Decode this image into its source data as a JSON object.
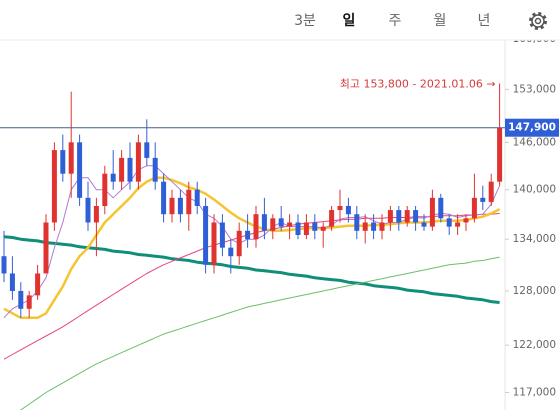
{
  "tabs": [
    "3분",
    "일",
    "주",
    "월",
    "년"
  ],
  "active_tab": 1,
  "chart_data": {
    "type": "candlestick",
    "log_scale": true,
    "ylim": [
      115200,
      165600
    ],
    "yticks": [
      {
        "value": 160000,
        "label": "160,000"
      },
      {
        "value": 153000,
        "label": "153,000"
      },
      {
        "value": 146000,
        "label": "146,000"
      },
      {
        "value": 140000,
        "label": "140,000"
      },
      {
        "value": 134000,
        "label": "134,000"
      },
      {
        "value": 128000,
        "label": "128,000"
      },
      {
        "value": 122000,
        "label": "122,000"
      },
      {
        "value": 117000,
        "label": "117,000"
      }
    ],
    "up_color": "#e0322f",
    "down_color": "#2f5fd6",
    "candles": {
      "open": [
        132000,
        130000,
        128000,
        126000,
        127500,
        130000,
        136000,
        145000,
        142000,
        146000,
        139000,
        136000,
        138000,
        142000,
        141000,
        144000,
        141000,
        146000,
        144000,
        141000,
        137000,
        139000,
        137000,
        140000,
        138000,
        131000,
        136000,
        133000,
        132000,
        135000,
        134000,
        137000,
        135000,
        136500,
        135500,
        136000,
        134500,
        136000,
        135000,
        135500,
        137500,
        138000,
        137000,
        135000,
        136000,
        135000,
        136000,
        137500,
        136000,
        137500,
        136000,
        135500,
        139000,
        136500,
        135500,
        136000,
        136500,
        139000,
        138500,
        141000
      ],
      "high": [
        135000,
        132000,
        129000,
        128000,
        131000,
        137000,
        146000,
        147000,
        152700,
        147000,
        141000,
        139000,
        143000,
        145000,
        145000,
        146000,
        147000,
        149000,
        146000,
        142000,
        140000,
        140000,
        141000,
        141000,
        139000,
        137000,
        137000,
        134000,
        136000,
        137000,
        138000,
        139000,
        137000,
        138000,
        137000,
        137000,
        137000,
        137000,
        136000,
        138000,
        140000,
        139000,
        138000,
        137000,
        137000,
        137000,
        138000,
        138000,
        138000,
        138000,
        137000,
        140000,
        139500,
        137000,
        137000,
        137000,
        142000,
        140500,
        142000,
        153800
      ],
      "low": [
        129000,
        127000,
        125000,
        125000,
        127000,
        130000,
        135000,
        141000,
        139000,
        138000,
        135000,
        132000,
        137000,
        140000,
        140000,
        140000,
        140000,
        143000,
        140000,
        136000,
        136000,
        136000,
        135000,
        137000,
        130000,
        130000,
        132000,
        130000,
        131000,
        133000,
        133000,
        134000,
        134000,
        135000,
        134000,
        134000,
        134000,
        134000,
        133000,
        135000,
        136000,
        136000,
        134000,
        133500,
        134000,
        134000,
        135000,
        135000,
        135500,
        135000,
        135000,
        135000,
        136000,
        134500,
        134500,
        135000,
        136000,
        137500,
        138000,
        140500
      ],
      "close": [
        130000,
        128000,
        126000,
        127500,
        130000,
        136000,
        145000,
        142000,
        146000,
        139000,
        136000,
        138000,
        142000,
        141000,
        144000,
        141000,
        146000,
        144000,
        141000,
        137000,
        139000,
        137000,
        140000,
        138000,
        131000,
        136000,
        133000,
        132000,
        135000,
        134000,
        137000,
        135000,
        136500,
        135500,
        136000,
        134500,
        136000,
        135000,
        135500,
        137500,
        138000,
        137000,
        135000,
        136000,
        135000,
        136000,
        137500,
        136000,
        137500,
        136000,
        135500,
        139000,
        136500,
        135500,
        136000,
        136500,
        139000,
        138500,
        141000,
        147900
      ]
    },
    "series": [
      {
        "color": "#0f8f7a",
        "width": 3,
        "values": [
          134300,
          134200,
          134000,
          133900,
          133800,
          133600,
          133500,
          133400,
          133300,
          133100,
          133000,
          132900,
          132800,
          132600,
          132500,
          132400,
          132200,
          132100,
          132000,
          131900,
          131700,
          131600,
          131500,
          131300,
          131200,
          131100,
          131000,
          130800,
          130700,
          130600,
          130400,
          130300,
          130200,
          130100,
          129900,
          129800,
          129700,
          129500,
          129400,
          129300,
          129200,
          129000,
          128900,
          128800,
          128600,
          128500,
          128400,
          128300,
          128100,
          128000,
          127900,
          127700,
          127600,
          127500,
          127400,
          127200,
          127100,
          127000,
          126800,
          126700
        ]
      },
      {
        "color": "#6cbf6c",
        "width": 1,
        "values": [
          114000,
          114600,
          115200,
          115800,
          116400,
          117000,
          117500,
          118000,
          118500,
          119000,
          119500,
          120000,
          120400,
          120800,
          121200,
          121600,
          122000,
          122400,
          122800,
          123200,
          123500,
          123800,
          124100,
          124400,
          124700,
          125000,
          125300,
          125600,
          125900,
          126200,
          126400,
          126600,
          126800,
          127000,
          127200,
          127400,
          127600,
          127800,
          128000,
          128200,
          128400,
          128600,
          128800,
          129000,
          129200,
          129400,
          129600,
          129800,
          130000,
          130200,
          130400,
          130600,
          130800,
          131000,
          131100,
          131200,
          131400,
          131500,
          131700,
          131900
        ]
      },
      {
        "color": "#e8457a",
        "width": 1,
        "values": [
          120500,
          121000,
          121500,
          122000,
          122500,
          123000,
          123500,
          124000,
          124600,
          125200,
          125800,
          126400,
          127000,
          127600,
          128200,
          128800,
          129400,
          130000,
          130500,
          131000,
          131400,
          131800,
          132200,
          132600,
          133000,
          133300,
          133600,
          133900,
          134200,
          134500,
          134800,
          135000,
          135200,
          135400,
          135600,
          135800,
          135900,
          136000,
          136100,
          136200,
          136300,
          136400,
          136400,
          136500,
          136500,
          136500,
          136600,
          136600,
          136600,
          136700,
          136700,
          136700,
          136800,
          136800,
          136800,
          136900,
          136900,
          137000,
          137000,
          137100
        ]
      },
      {
        "color": "#f7c431",
        "width": 2.5,
        "values": [
          126000,
          125500,
          125000,
          125000,
          125000,
          125500,
          127000,
          128500,
          130500,
          132000,
          133000,
          134500,
          136000,
          137000,
          138000,
          139000,
          140200,
          141000,
          141500,
          141500,
          141200,
          140800,
          140300,
          140000,
          139500,
          138800,
          138000,
          137200,
          136500,
          136000,
          135500,
          135200,
          135000,
          135000,
          135100,
          135200,
          135300,
          135300,
          135300,
          135400,
          135500,
          135600,
          135600,
          135600,
          135700,
          135700,
          135800,
          135900,
          136000,
          136000,
          136000,
          136100,
          136200,
          136200,
          136200,
          136300,
          136500,
          136700,
          137100,
          137600
        ]
      },
      {
        "color": "#b07ad8",
        "width": 1,
        "values": [
          125000,
          126000,
          126500,
          127000,
          128000,
          129500,
          133000,
          136000,
          140000,
          141500,
          141500,
          140000,
          140000,
          139000,
          140000,
          141000,
          142500,
          143000,
          143000,
          142000,
          141000,
          140000,
          139000,
          138500,
          137000,
          136500,
          135500,
          134000,
          133500,
          134000,
          134000,
          134500,
          135500,
          136000,
          135500,
          135500,
          135500,
          135500,
          135300,
          135700,
          136400,
          136600,
          136600,
          136700,
          136200,
          135800,
          136000,
          136000,
          136400,
          136600,
          136500,
          136900,
          137100,
          137000,
          136600,
          136800,
          136900,
          137000,
          138200,
          140500
        ]
      }
    ],
    "high_annotation": "최고 153,800 - 2021.01.06 →",
    "last_price_label": "147,900"
  }
}
